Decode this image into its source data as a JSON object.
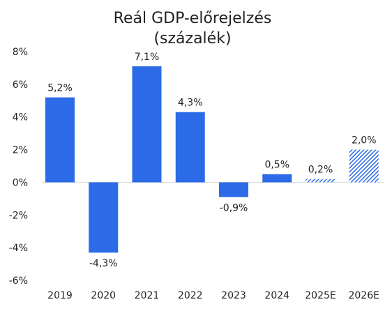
{
  "chart_data": {
    "type": "bar",
    "title_lines": [
      "Reál GDP-előrejelzés",
      "(százalék)"
    ],
    "categories": [
      "2019",
      "2020",
      "2021",
      "2022",
      "2023",
      "2024",
      "2025E",
      "2026E"
    ],
    "values": [
      5.2,
      -4.3,
      7.1,
      4.3,
      -0.9,
      0.5,
      0.2,
      2.0
    ],
    "value_labels": [
      "5,2%",
      "-4,3%",
      "7,1%",
      "4,3%",
      "-0,9%",
      "0,5%",
      "0,2%",
      "2,0%"
    ],
    "forecast": [
      false,
      false,
      false,
      false,
      false,
      false,
      true,
      true
    ],
    "ylim": [
      -6,
      8
    ],
    "yticks": [
      8,
      6,
      4,
      2,
      0,
      -2,
      -4,
      -6
    ],
    "ytick_labels": [
      "8%",
      "6%",
      "4%",
      "2%",
      "0%",
      "-2%",
      "-4%",
      "-6%"
    ],
    "xlabel": "",
    "ylabel": "",
    "grid": false,
    "bar_color": "#2B6BE8",
    "zero_line_color": "#D9D9D9"
  }
}
